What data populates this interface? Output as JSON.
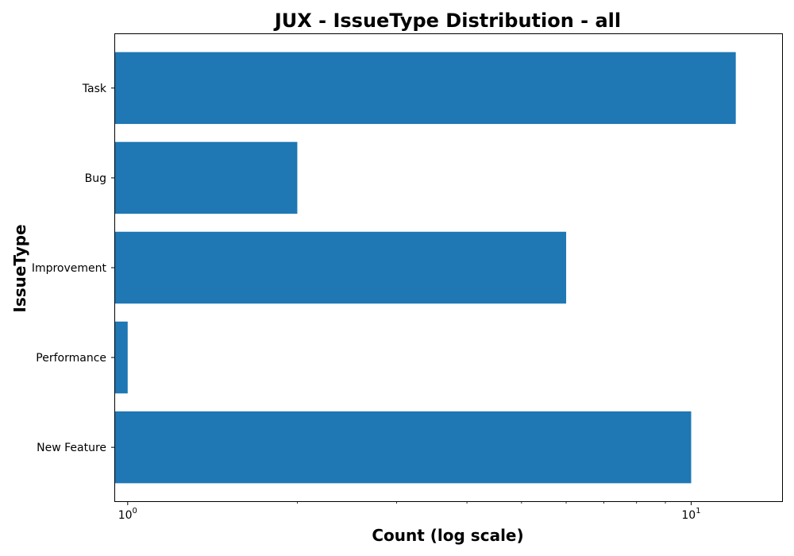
{
  "chart_data": {
    "type": "bar",
    "orientation": "horizontal",
    "title": "JUX - IssueType Distribution - all",
    "xlabel": "Count (log scale)",
    "ylabel": "IssueType",
    "x_scale": "log",
    "xlim": [
      0.95,
      14.5
    ],
    "x_ticks": [
      {
        "value": 1,
        "base": "10",
        "exp": "0"
      },
      {
        "value": 10,
        "base": "10",
        "exp": "1"
      }
    ],
    "categories": [
      "Task",
      "Bug",
      "Improvement",
      "Performance",
      "New Feature"
    ],
    "values": [
      12,
      2,
      6,
      1,
      10
    ],
    "bar_color": "#1f77b4",
    "grid": false
  }
}
